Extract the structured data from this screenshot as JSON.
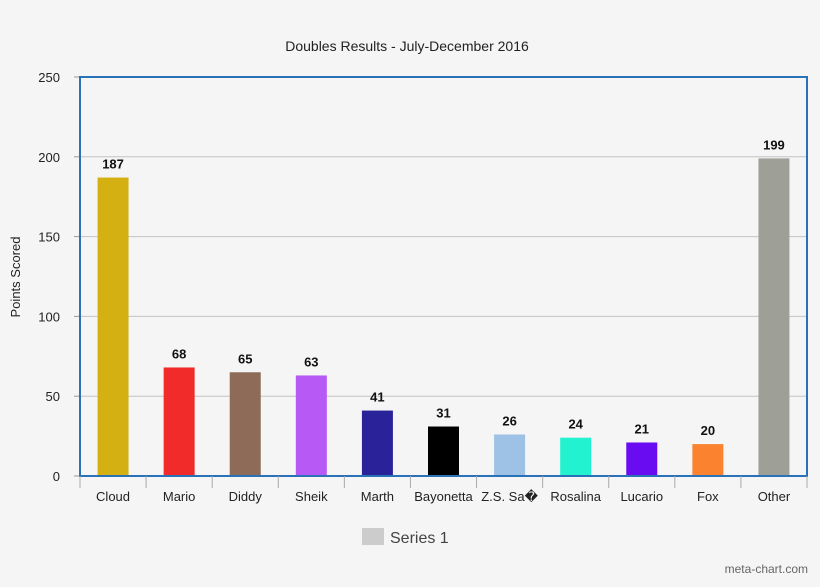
{
  "chart_data": {
    "type": "bar",
    "title": "Doubles Results - July-December 2016",
    "xlabel": "",
    "ylabel": "Points Scored",
    "ylim": [
      0,
      250
    ],
    "yticks": [
      0,
      50,
      100,
      150,
      200,
      250
    ],
    "grid": true,
    "legend_position": "bottom",
    "categories": [
      "Cloud",
      "Mario",
      "Diddy",
      "Sheik",
      "Marth",
      "Bayonetta",
      "Z.S. Sa�",
      "Rosalina",
      "Lucario",
      "Fox",
      "Other"
    ],
    "series": [
      {
        "name": "Series 1",
        "values": [
          187,
          68,
          65,
          63,
          41,
          31,
          26,
          24,
          21,
          20,
          199
        ]
      }
    ],
    "colors": [
      "#d4b012",
      "#f12a2a",
      "#8e6a58",
      "#b659f5",
      "#2a2299",
      "#000000",
      "#9ec1e6",
      "#22f2d0",
      "#6a0cf2",
      "#fb8330",
      "#9ea098"
    ],
    "legend_swatch_color": "#cccccc",
    "frame_color": "#2a72b8"
  },
  "credit": "meta-chart.com"
}
